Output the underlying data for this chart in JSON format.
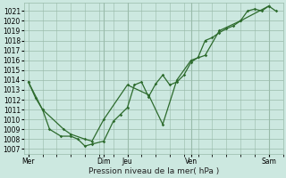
{
  "xlabel": "Pression niveau de la mer( hPa )",
  "ylim": [
    1006.5,
    1021.8
  ],
  "yticks": [
    1007,
    1008,
    1009,
    1010,
    1011,
    1012,
    1013,
    1014,
    1015,
    1016,
    1017,
    1018,
    1019,
    1020,
    1021
  ],
  "bg_color": "#cce8e0",
  "grid_color": "#99bbaa",
  "line_color": "#2d6b2d",
  "x_day_labels": [
    "Mer",
    "Dim",
    "Jeu",
    "Ven",
    "Sam"
  ],
  "x_day_positions": [
    0.0,
    5.33,
    7.0,
    11.5,
    17.0
  ],
  "x_vlines": [
    5.33,
    7.0,
    11.5,
    17.0
  ],
  "xlim": [
    -0.3,
    18.0
  ],
  "line1_x": [
    0.0,
    0.5,
    1.0,
    1.5,
    2.3,
    3.0,
    3.5,
    4.0,
    4.5,
    5.33,
    6.0,
    6.5,
    7.0,
    7.5,
    8.0,
    8.5,
    9.0,
    9.5,
    10.0,
    10.5,
    11.0,
    11.5,
    12.0,
    12.5,
    13.0,
    13.5,
    14.0,
    14.5,
    15.0,
    15.5,
    16.0,
    16.5,
    17.0,
    17.5
  ],
  "line1_y": [
    1013.8,
    1012.2,
    1011.0,
    1009.0,
    1008.3,
    1008.3,
    1008.0,
    1007.3,
    1007.5,
    1007.8,
    1009.8,
    1010.5,
    1011.2,
    1013.5,
    1013.8,
    1012.3,
    1013.6,
    1014.5,
    1013.5,
    1013.8,
    1014.5,
    1015.8,
    1016.3,
    1018.0,
    1018.3,
    1018.8,
    1019.2,
    1019.5,
    1020.0,
    1021.0,
    1021.2,
    1021.0,
    1021.5,
    1021.0
  ],
  "line2_x": [
    0.0,
    1.0,
    2.5,
    3.0,
    4.0,
    4.5,
    5.33,
    7.0,
    8.5,
    9.5,
    10.5,
    11.5,
    12.5,
    13.5,
    15.0,
    17.0
  ],
  "line2_y": [
    1013.8,
    1011.0,
    1009.0,
    1008.5,
    1008.0,
    1007.8,
    1010.0,
    1013.5,
    1012.5,
    1009.5,
    1014.0,
    1016.0,
    1016.5,
    1019.0,
    1020.0,
    1021.5
  ]
}
